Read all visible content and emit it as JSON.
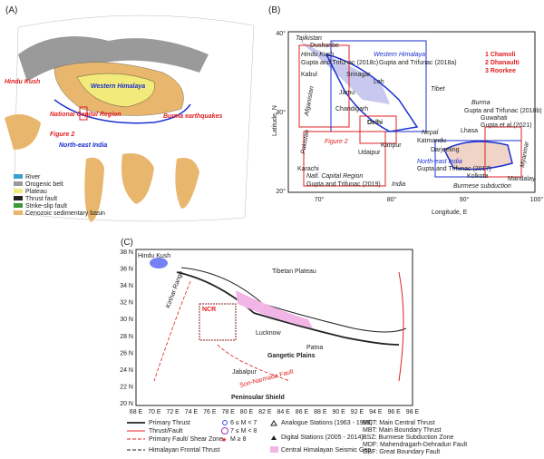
{
  "panel_a": {
    "label": "(A)",
    "hindu_kush": "Hindu Kush",
    "western_himalaya": "Western Himalaya",
    "ncr": "National Capital Region",
    "figure2": "Figure 2",
    "burma": "Burma earthquakes",
    "northeast": "North-east India",
    "legend": [
      "River",
      "Orogenic belt",
      "Plateau",
      "Thrust fault",
      "Strike-slip fault",
      "Cenozoic sedimentary basin"
    ]
  },
  "panel_b": {
    "label": "(B)",
    "tajikistan": "Tajikistan",
    "dushanbe": "Dushanbe",
    "hindu_kush": "Hindu Kush",
    "hk_ref": "Gupta and Trifunac (2018c)",
    "western_himalaya": "Western Himalaya",
    "wh_ref": "Gupta and Trifunac (2018a)",
    "sites": [
      "1 Chamoli",
      "2 Dhanaulti",
      "3 Roorkee"
    ],
    "kabul": "Kabul",
    "srinagar": "Srinagar",
    "leh": "Leh",
    "tibet": "Tibet",
    "afghanistan": "Afganistan",
    "jamu": "Jamu",
    "chandigarh": "Chandigarh",
    "delhi": "Delhi",
    "burma": "Burma",
    "burma_ref": "Gupta and Trifunac (2018b)",
    "lhasa": "Lhasa",
    "guwahati": "Guwahati",
    "guwahati_ref": "Gupta et al.(2021)",
    "pakistan": "Pakistan",
    "figure2": "Figure 2",
    "kanpur": "Kanpur",
    "nepal": "Nepal",
    "katmandu": "Katmandu",
    "darjeeling": "Darjeeling",
    "udaipur": "Udaipur",
    "northeast": "North-east India",
    "ne_ref": "Gupta and Trifunac (2017)",
    "myanmar": "Myanmar",
    "karachi": "Karachi",
    "kolkota": "Kolkota",
    "mandalay": "Mandalay",
    "ncr": "Natl. Capital Region",
    "ncr_ref": "Gupta and Trifunac (2019)",
    "india": "India",
    "burmese_subduction": "Burmese subduction",
    "ylabel": "Latitude, N",
    "xlabel": "Longitude, E",
    "yticks": [
      "40°",
      "30°",
      "20°"
    ],
    "xticks": [
      "70°",
      "80°",
      "90°",
      "100°"
    ]
  },
  "panel_c": {
    "label": "(C)",
    "hindu_kush": "Hindu Kush",
    "tibetan_plateau": "Tibetan Plateau",
    "gangetic": "Gangetic Plains",
    "peninsular": "Peninsular Shield",
    "kirthar": "Kirthar Range",
    "lucknow": "Lucknow",
    "patna": "Patna",
    "jabalpur": "Jabalpur",
    "son_narmada": "Son-Narmada Fault",
    "ncr": "NCR",
    "yticks": [
      "38 N",
      "36 N",
      "34 N",
      "32 N",
      "30 N",
      "28 N",
      "26 N",
      "24 N",
      "22 N",
      "20 N"
    ],
    "xticks": [
      "68 E",
      "70 E",
      "72 E",
      "74 E",
      "76 E",
      "78 E",
      "80 E",
      "82 E",
      "84 E",
      "86 E",
      "88 E",
      "90 E",
      "92 E",
      "94 E",
      "96 E",
      "98 E"
    ],
    "legend": {
      "primary_thrust": "Primary Thrust",
      "thrust_fault": "Thrust/Fault",
      "primary_fault": "Primary Fault/ Shear Zone",
      "hft": "Himalayan Frontal Thrust",
      "m6": "6 ≤ M < 7",
      "m7": "7 ≤ M < 8",
      "m8": "M ≥ 8",
      "analogue": "Analogue Stations (1963 - 1999)",
      "digital": "Digital Stations (2005 - 2014)",
      "gap": "Central Himalayan Seismic Gap",
      "abbrev": [
        "MCT: Main Central Thrust",
        "MBT: Main Boundary Thrust",
        "BSZ: Burmese Subduction Zone",
        "MDF: Mahendragarh-Dehradun Fault",
        "GBF: Great Boundary Fault"
      ]
    }
  }
}
